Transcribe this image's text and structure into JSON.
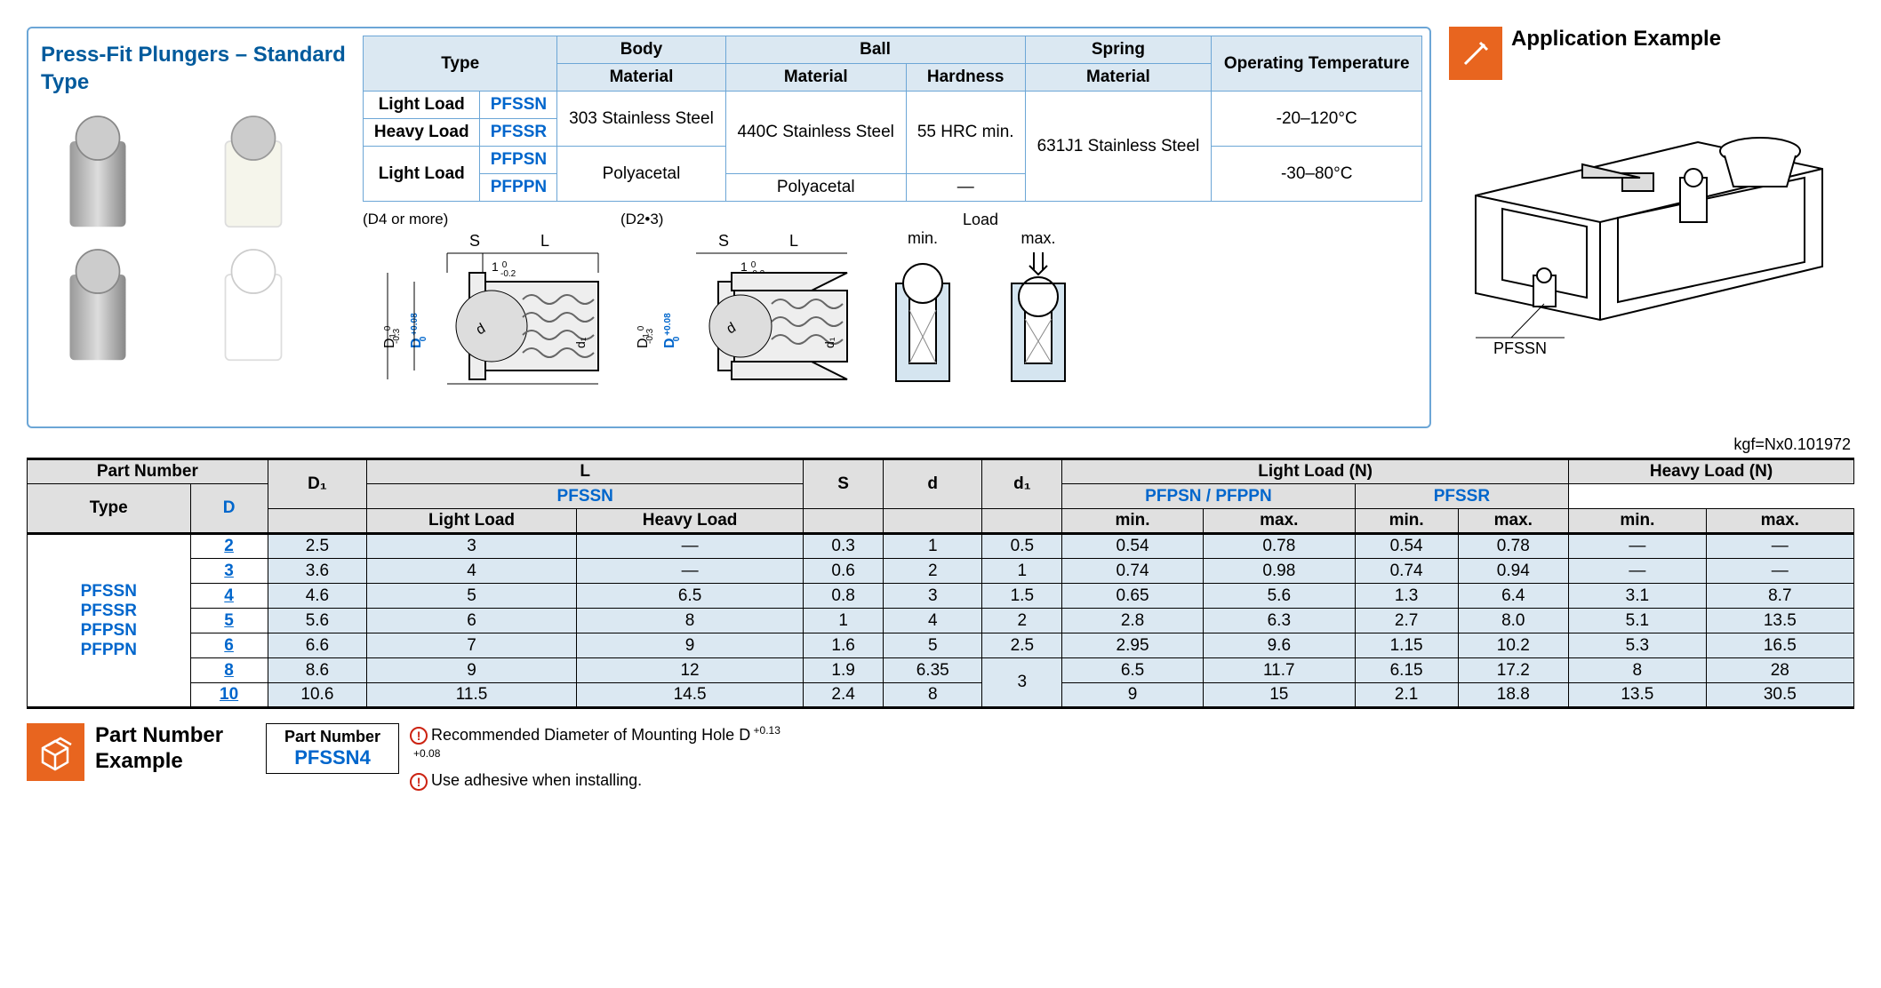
{
  "title": "Press-Fit Plungers – Standard Type",
  "material_table": {
    "headers": {
      "type": "Type",
      "body": "Body",
      "ball": "Ball",
      "spring": "Spring",
      "optemp": "Operating Temperature",
      "material": "Material",
      "hardness": "Hardness"
    },
    "rows": [
      {
        "load": "Light Load",
        "code": "PFSSN"
      },
      {
        "load": "Heavy Load",
        "code": "PFSSR"
      },
      {
        "load": "Light Load",
        "code": "PFPSN"
      },
      {
        "load": "",
        "code": "PFPPN"
      }
    ],
    "body_mat_1": "303 Stainless Steel",
    "body_mat_2": "Polyacetal",
    "ball_mat_1": "440C Stainless Steel",
    "ball_mat_2": "Polyacetal",
    "hardness_1": "55 HRC min.",
    "hardness_2": "—",
    "spring_mat": "631J1 Stainless Steel",
    "optemp_1": "-20–120°C",
    "optemp_2": "-30–80°C"
  },
  "diag_labels": {
    "d4": "(D4 or more)",
    "d23": "(D2•3)",
    "load": "Load",
    "min": "min.",
    "max": "max.",
    "s": "S",
    "l": "L",
    "d_cap": "D",
    "d1": "D₁",
    "d_small": "d",
    "d1_small": "d₁",
    "tol1": "1 -0.2",
    "tol_d": "+0.08 0",
    "tol_d1": "0 -0.3"
  },
  "app_example": {
    "title": "Application Example",
    "label": "PFSSN"
  },
  "unit_note": "kgf=Nx0.101972",
  "spec_table": {
    "hdr": {
      "partnum": "Part Number",
      "type": "Type",
      "d": "D",
      "d1": "D₁",
      "l": "L",
      "light": "Light Load",
      "heavy": "Heavy Load",
      "s": "S",
      "d_small": "d",
      "d1_small": "d₁",
      "lightload": "Light Load (N)",
      "heavyload": "Heavy Load (N)",
      "pfssn": "PFSSN",
      "pfpsn": "PFPSN / PFPPN",
      "pfssr": "PFSSR",
      "min": "min.",
      "max": "max."
    },
    "types": [
      "PFSSN",
      "PFSSR",
      "PFPSN",
      "PFPPN"
    ],
    "rows": [
      {
        "d": "2",
        "d1": "2.5",
        "l_light": "3",
        "l_heavy": "—",
        "s": "0.3",
        "ds": "1",
        "d1s": "0.5",
        "pfssn_min": "0.54",
        "pfssn_max": "0.78",
        "pfp_min": "0.54",
        "pfp_max": "0.78",
        "pfssr_min": "—",
        "pfssr_max": "—"
      },
      {
        "d": "3",
        "d1": "3.6",
        "l_light": "4",
        "l_heavy": "—",
        "s": "0.6",
        "ds": "2",
        "d1s": "1",
        "pfssn_min": "0.74",
        "pfssn_max": "0.98",
        "pfp_min": "0.74",
        "pfp_max": "0.94",
        "pfssr_min": "—",
        "pfssr_max": "—"
      },
      {
        "d": "4",
        "d1": "4.6",
        "l_light": "5",
        "l_heavy": "6.5",
        "s": "0.8",
        "ds": "3",
        "d1s": "1.5",
        "pfssn_min": "0.65",
        "pfssn_max": "5.6",
        "pfp_min": "1.3",
        "pfp_max": "6.4",
        "pfssr_min": "3.1",
        "pfssr_max": "8.7"
      },
      {
        "d": "5",
        "d1": "5.6",
        "l_light": "6",
        "l_heavy": "8",
        "s": "1",
        "ds": "4",
        "d1s": "2",
        "pfssn_min": "2.8",
        "pfssn_max": "6.3",
        "pfp_min": "2.7",
        "pfp_max": "8.0",
        "pfssr_min": "5.1",
        "pfssr_max": "13.5"
      },
      {
        "d": "6",
        "d1": "6.6",
        "l_light": "7",
        "l_heavy": "9",
        "s": "1.6",
        "ds": "5",
        "d1s": "2.5",
        "pfssn_min": "2.95",
        "pfssn_max": "9.6",
        "pfp_min": "1.15",
        "pfp_max": "10.2",
        "pfssr_min": "5.3",
        "pfssr_max": "16.5"
      },
      {
        "d": "8",
        "d1": "8.6",
        "l_light": "9",
        "l_heavy": "12",
        "s": "1.9",
        "ds": "6.35",
        "d1s": "",
        "pfssn_min": "6.5",
        "pfssn_max": "11.7",
        "pfp_min": "6.15",
        "pfp_max": "17.2",
        "pfssr_min": "8",
        "pfssr_max": "28"
      },
      {
        "d": "10",
        "d1": "10.6",
        "l_light": "11.5",
        "l_heavy": "14.5",
        "s": "2.4",
        "ds": "8",
        "d1s": "3",
        "pfssn_min": "9",
        "pfssn_max": "15",
        "pfp_min": "2.1",
        "pfp_max": "18.8",
        "pfssr_min": "13.5",
        "pfssr_max": "30.5"
      }
    ]
  },
  "example": {
    "title": "Part Number Example",
    "box_label": "Part Number",
    "box_value": "PFSSN4"
  },
  "notes": {
    "n1": "Recommended Diameter of Mounting Hole D",
    "n1_tol": "+0.13 +0.08",
    "n2": "Use adhesive when installing.",
    "marker": "!"
  },
  "colors": {
    "border_blue": "#6ca6d6",
    "cell_blue": "#dbe8f2",
    "link_blue": "#0066cc",
    "orange": "#e8651f",
    "red": "#cc2211"
  }
}
